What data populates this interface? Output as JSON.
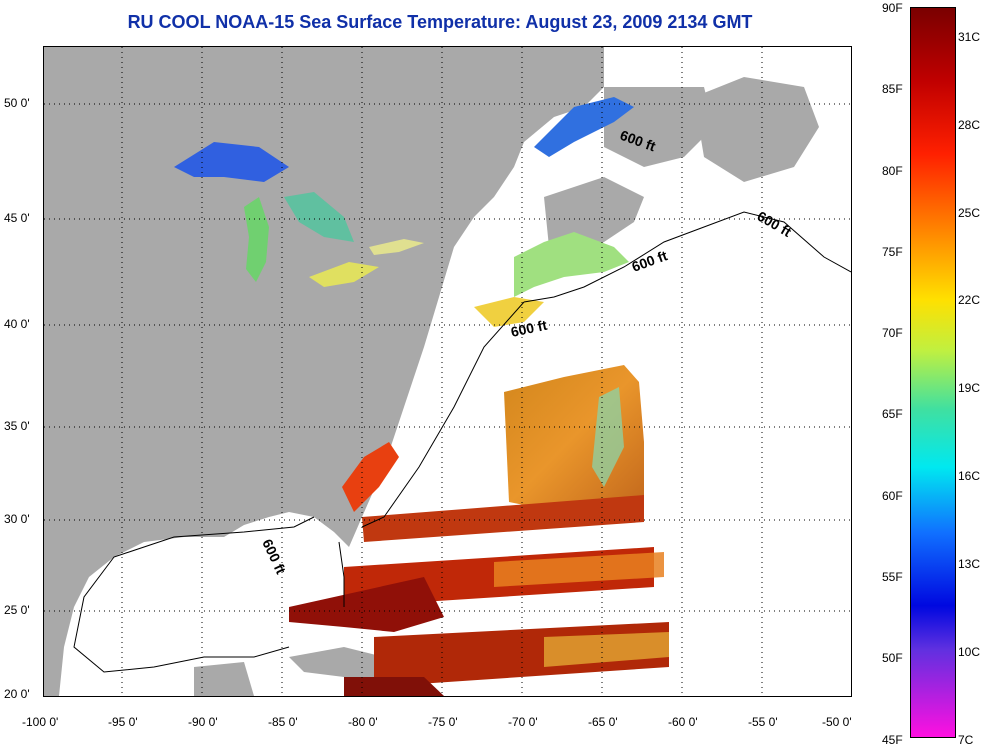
{
  "title": "RU COOL  NOAA-15  Sea Surface Temperature:  August 23, 2009 2134 GMT",
  "map": {
    "lon_labels": [
      "-100 0'",
      "-95 0'",
      "-90 0'",
      "-85 0'",
      "-80 0'",
      "-75 0'",
      "-70 0'",
      "-65 0'",
      "-60 0'",
      "-55 0'",
      "-50 0'"
    ],
    "lat_labels": [
      "50 0'",
      "45 0'",
      "40 0'",
      "35 0'",
      "30 0'",
      "25 0'",
      "20 0'"
    ],
    "contour_label": "600 ft",
    "colors": {
      "land": "#a9a9a9",
      "water_nodata": "#ffffff",
      "grid": "#000000"
    }
  },
  "colorbar": {
    "f_labels": [
      "90F",
      "85F",
      "80F",
      "75F",
      "70F",
      "65F",
      "60F",
      "55F",
      "50F",
      "45F"
    ],
    "c_labels": [
      "31C",
      "28C",
      "25C",
      "22C",
      "19C",
      "16C",
      "13C",
      "10C",
      "7C"
    ]
  }
}
